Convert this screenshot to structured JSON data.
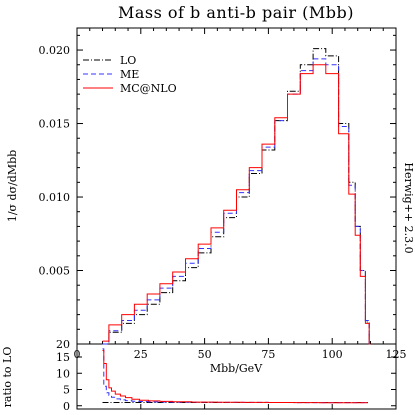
{
  "chart_data": {
    "type": "line",
    "title": "Mass of b anti-b pair (Mbb)",
    "side_label": "Herwig++ 2.3.0",
    "xlabel": "Mbb/GeV",
    "ylabel": "1/σ dσ/dMbb",
    "ratio_ylabel": "ratio to LO",
    "xlim": [
      0,
      125
    ],
    "ylim": [
      0,
      0.0215
    ],
    "ratio_ylim": [
      -1,
      19
    ],
    "x_ticks": [
      0,
      25,
      50,
      75,
      100,
      125
    ],
    "x_tick_labels": [
      "0",
      "25",
      "50",
      "75",
      "100",
      "125"
    ],
    "y_ticks": [
      0.005,
      0.01,
      0.015,
      0.02
    ],
    "y_tick_labels": [
      "0.005",
      "0.010",
      "0.015",
      "0.020"
    ],
    "y_bottom_label": "20",
    "ratio_ticks": [
      0,
      5,
      10,
      15
    ],
    "ratio_tick_labels": [
      "0",
      "5",
      "10",
      "15"
    ],
    "legend_position": "top-left",
    "legend": [
      {
        "name": "LO",
        "color": "#000000",
        "dash": "dashdot"
      },
      {
        "name": "ME",
        "color": "#3333ff",
        "dash": "dashed"
      },
      {
        "name": "MC@NLO",
        "color": "#ff0000",
        "dash": "solid"
      }
    ],
    "x": [
      10,
      15,
      20,
      25,
      30,
      35,
      40,
      45,
      50,
      55,
      60,
      65,
      70,
      75,
      80,
      85,
      90,
      95,
      100,
      105,
      108,
      110,
      112,
      114,
      115
    ],
    "series": [
      {
        "name": "LO",
        "color": "#000000",
        "dash": "dashdot",
        "values": [
          0.0,
          0.0008,
          0.0014,
          0.002,
          0.0027,
          0.0035,
          0.0043,
          0.0052,
          0.0062,
          0.0073,
          0.0086,
          0.01,
          0.0116,
          0.0132,
          0.0152,
          0.0172,
          0.019,
          0.0201,
          0.0196,
          0.015,
          0.011,
          0.008,
          0.005,
          0.0015,
          0.0
        ]
      },
      {
        "name": "ME",
        "color": "#3333ff",
        "dash": "dashed",
        "values": [
          0.0,
          0.0009,
          0.0016,
          0.0023,
          0.003,
          0.0038,
          0.0046,
          0.0055,
          0.0065,
          0.0076,
          0.0089,
          0.0103,
          0.0118,
          0.0134,
          0.0152,
          0.017,
          0.0186,
          0.0194,
          0.019,
          0.0148,
          0.0108,
          0.008,
          0.005,
          0.0016,
          0.0
        ]
      },
      {
        "name": "MC@NLO",
        "color": "#ff0000",
        "dash": "solid",
        "values": [
          0.0002,
          0.0013,
          0.002,
          0.0027,
          0.0034,
          0.0041,
          0.0049,
          0.0058,
          0.0068,
          0.0079,
          0.0091,
          0.0105,
          0.012,
          0.0136,
          0.0154,
          0.017,
          0.0184,
          0.019,
          0.0184,
          0.0143,
          0.0102,
          0.0074,
          0.0046,
          0.0014,
          0.0
        ]
      }
    ],
    "ratio_x": [
      10,
      11,
      12,
      13,
      14,
      16,
      18,
      20,
      23,
      26,
      30,
      35,
      40,
      50,
      60,
      70,
      80,
      90,
      100,
      110,
      114
    ],
    "ratio_series": [
      {
        "name": "LO",
        "color": "#000000",
        "dash": "dashdot",
        "values": [
          1,
          1,
          1,
          1,
          1,
          1,
          1,
          1,
          1,
          1,
          1,
          1,
          1,
          1,
          1,
          1,
          1,
          1,
          1,
          1,
          1
        ]
      },
      {
        "name": "ME",
        "color": "#3333ff",
        "dash": "dashed",
        "values": [
          17.5,
          6.0,
          4.0,
          3.2,
          2.6,
          2.1,
          1.8,
          1.6,
          1.4,
          1.3,
          1.2,
          1.15,
          1.1,
          1.05,
          1.03,
          1.02,
          1.0,
          0.98,
          0.97,
          0.98,
          1.0
        ]
      },
      {
        "name": "MC@NLO",
        "color": "#ff0000",
        "dash": "solid",
        "values": [
          17.0,
          13.0,
          8.0,
          5.5,
          4.5,
          3.6,
          3.0,
          2.5,
          2.0,
          1.7,
          1.5,
          1.35,
          1.25,
          1.12,
          1.06,
          1.03,
          1.0,
          0.96,
          0.94,
          0.95,
          0.9
        ]
      }
    ]
  }
}
